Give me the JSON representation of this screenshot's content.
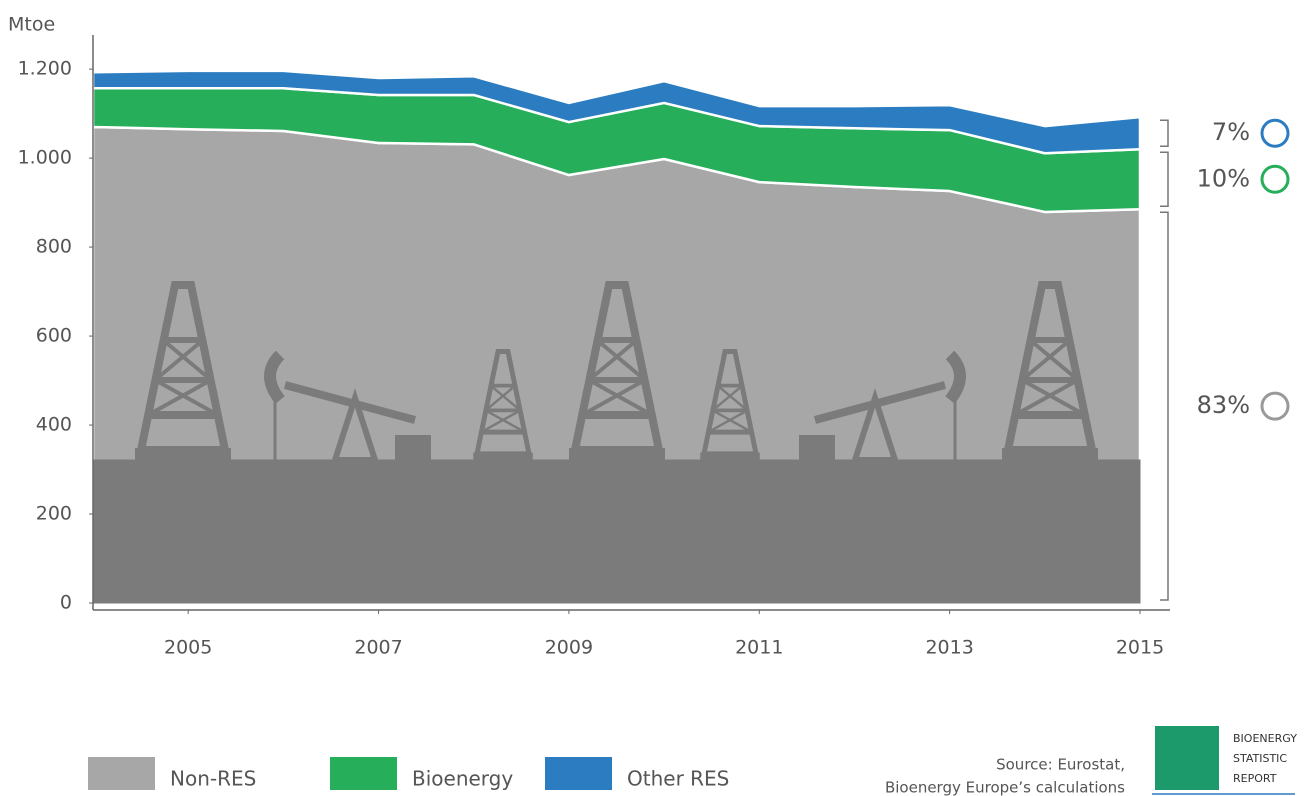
{
  "chart_data": {
    "type": "area",
    "stacked": true,
    "ylabel": "Mtoe",
    "x": [
      2004,
      2005,
      2006,
      2007,
      2008,
      2009,
      2010,
      2011,
      2012,
      2013,
      2014,
      2015
    ],
    "series": [
      {
        "name": "Non-RES",
        "color": "#a7a7a7",
        "values": [
          1070,
          1065,
          1061,
          1034,
          1031,
          962,
          998,
          946,
          935,
          926,
          879,
          885
        ]
      },
      {
        "name": "Bioenergy",
        "color": "#27ae5a",
        "values": [
          87,
          92,
          96,
          108,
          111,
          119,
          126,
          126,
          132,
          137,
          132,
          135
        ]
      },
      {
        "name": "Other RES",
        "color": "#2b7cc0",
        "values": [
          36,
          39,
          39,
          38,
          42,
          43,
          49,
          45,
          50,
          56,
          61,
          72
        ]
      }
    ],
    "xlim": [
      2004,
      2015
    ],
    "xticks": [
      2005,
      2007,
      2009,
      2011,
      2013,
      2015
    ],
    "ylim": [
      0,
      1270
    ],
    "yticks": [
      0,
      200,
      400,
      600,
      800,
      {
        "value": 1000,
        "label": "1.000"
      },
      {
        "value": 1200,
        "label": "1.200"
      }
    ],
    "annotations": [
      "83%",
      "10%",
      "7%"
    ]
  },
  "source": [
    "Source: Eurostat,",
    "Bioenergy Europe’s calculations"
  ],
  "logo": [
    "BIOENERGY",
    "STATISTIC",
    "REPORT"
  ]
}
